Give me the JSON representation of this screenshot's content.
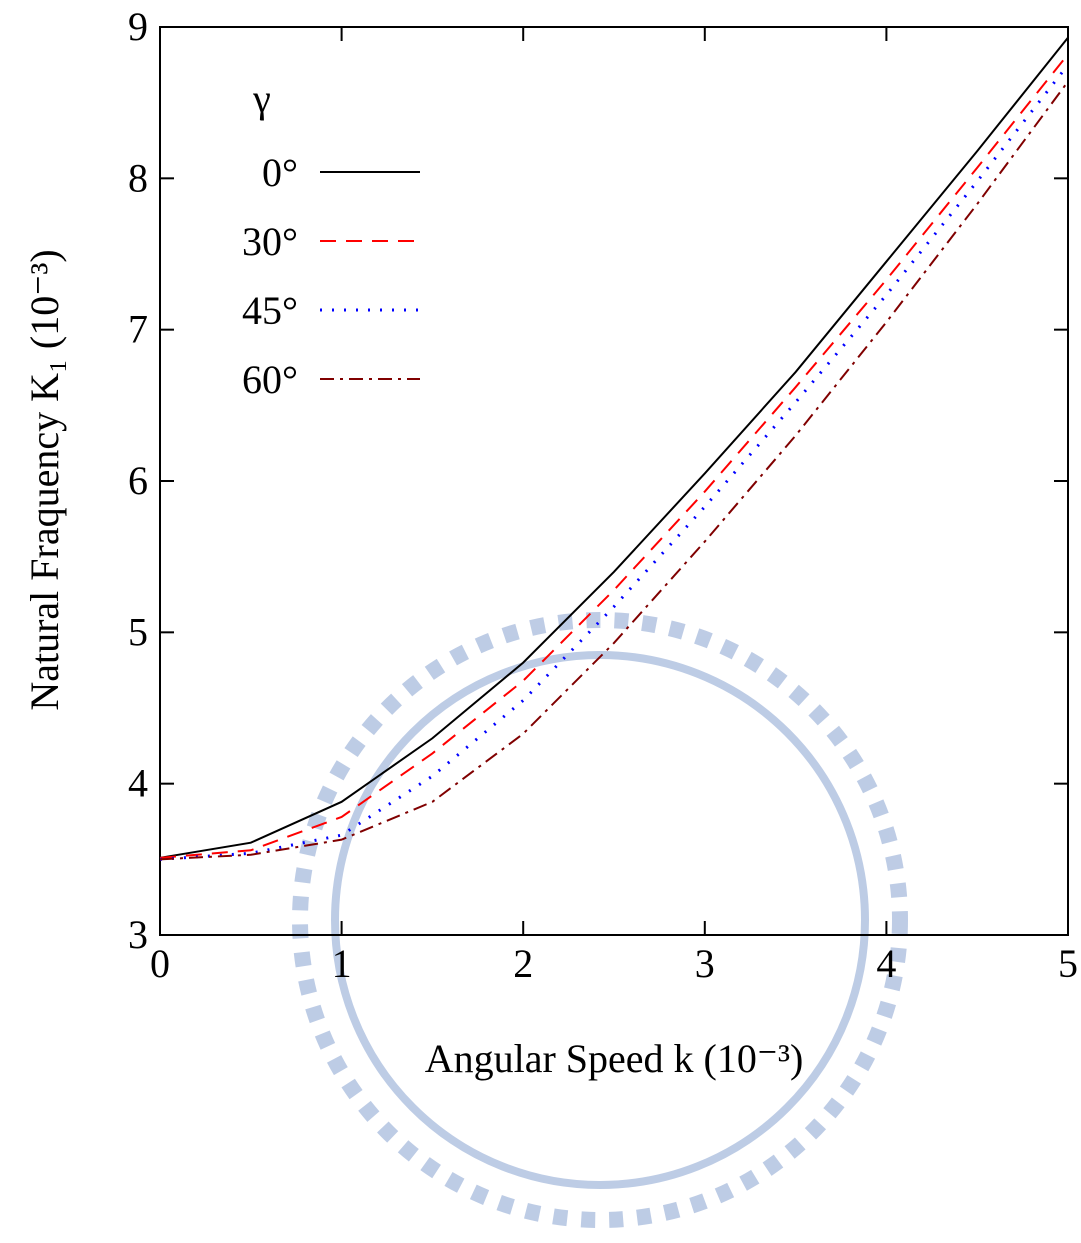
{
  "chart_data": {
    "type": "line",
    "x_label": "Angular Speed  k (10⁻³)",
    "y_label": "Natural Fraquency  K₁ (10⁻³)",
    "legend_title": "γ",
    "legend_position": "upper left",
    "x": [
      0,
      0.5,
      1,
      1.5,
      2,
      2.5,
      3,
      3.5,
      4,
      4.5,
      5
    ],
    "series": [
      {
        "name": "0°",
        "color": "#000000",
        "dash": "solid",
        "values": [
          3.51,
          3.61,
          3.88,
          4.3,
          4.8,
          5.4,
          6.05,
          6.72,
          7.45,
          8.18,
          8.93
        ]
      },
      {
        "name": "30°",
        "color": "#ff0000",
        "dash": "dashed",
        "values": [
          3.51,
          3.56,
          3.78,
          4.2,
          4.68,
          5.28,
          5.93,
          6.62,
          7.33,
          8.07,
          8.82
        ]
      },
      {
        "name": "45°",
        "color": "#0000ff",
        "dash": "dotted",
        "values": [
          3.5,
          3.54,
          3.66,
          4.05,
          4.55,
          5.17,
          5.83,
          6.52,
          7.23,
          7.98,
          8.75
        ]
      },
      {
        "name": "60°",
        "color": "#800000",
        "dash": "dashdot",
        "values": [
          3.5,
          3.53,
          3.63,
          3.88,
          4.33,
          4.93,
          5.6,
          6.3,
          7.05,
          7.83,
          8.64
        ]
      }
    ],
    "xlim": [
      0,
      5
    ],
    "xticks": [
      0,
      1,
      2,
      3,
      4,
      5
    ],
    "ylim": [
      3,
      9
    ],
    "yticks": [
      3,
      4,
      5,
      6,
      7,
      8,
      9
    ],
    "grid": false
  }
}
